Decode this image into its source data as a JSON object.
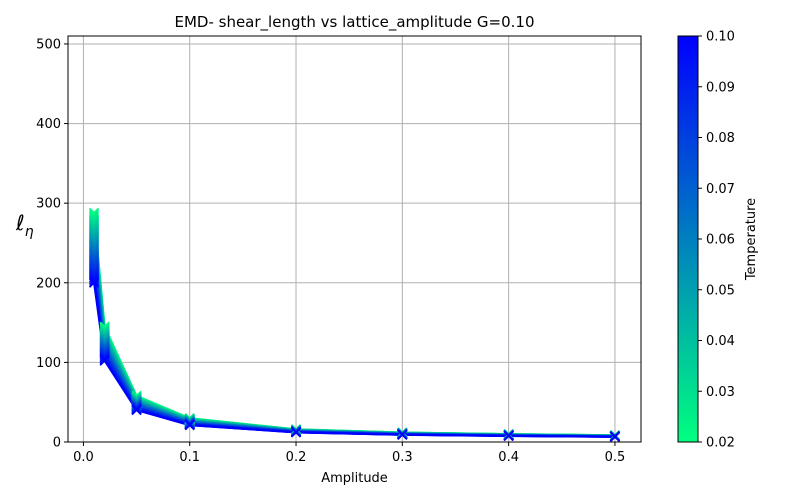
{
  "chart_data": {
    "type": "line",
    "title": "EMD- shear_length vs lattice_amplitude G=0.10",
    "xlabel": "Amplitude",
    "ylabel": "ℓ",
    "ylabel_subscript": "η",
    "x": [
      0.01,
      0.02,
      0.05,
      0.1,
      0.2,
      0.3,
      0.4,
      0.5
    ],
    "xlim": [
      -0.0145,
      0.5245
    ],
    "ylim": [
      0,
      510
    ],
    "xticks": [
      0.0,
      0.1,
      0.2,
      0.3,
      0.4,
      0.5
    ],
    "xtick_labels": [
      "0.0",
      "0.1",
      "0.2",
      "0.3",
      "0.4",
      "0.5"
    ],
    "yticks": [
      0,
      100,
      200,
      300,
      400,
      500
    ],
    "ytick_labels": [
      "0",
      "100",
      "200",
      "300",
      "400",
      "500"
    ],
    "grid": true,
    "marker": "x",
    "series_note": "family of curves colored by temperature",
    "series_low": {
      "temperature": 0.02,
      "values": [
        288,
        145,
        58,
        30,
        16,
        12,
        10,
        8.5
      ]
    },
    "series_high": {
      "temperature": 0.1,
      "values": [
        200,
        102,
        40,
        21,
        12,
        9,
        7.5,
        6.5
      ]
    },
    "series_count": 41,
    "colorbar": {
      "label": "Temperature",
      "vmin": 0.02,
      "vmax": 0.1,
      "ticks": [
        0.02,
        0.03,
        0.04,
        0.05,
        0.06,
        0.07,
        0.08,
        0.09,
        0.1
      ],
      "tick_labels": [
        "0.02",
        "0.03",
        "0.04",
        "0.05",
        "0.06",
        "0.07",
        "0.08",
        "0.09",
        "0.10"
      ],
      "color_low": "#00ff80",
      "color_high": "#0000ff"
    }
  }
}
